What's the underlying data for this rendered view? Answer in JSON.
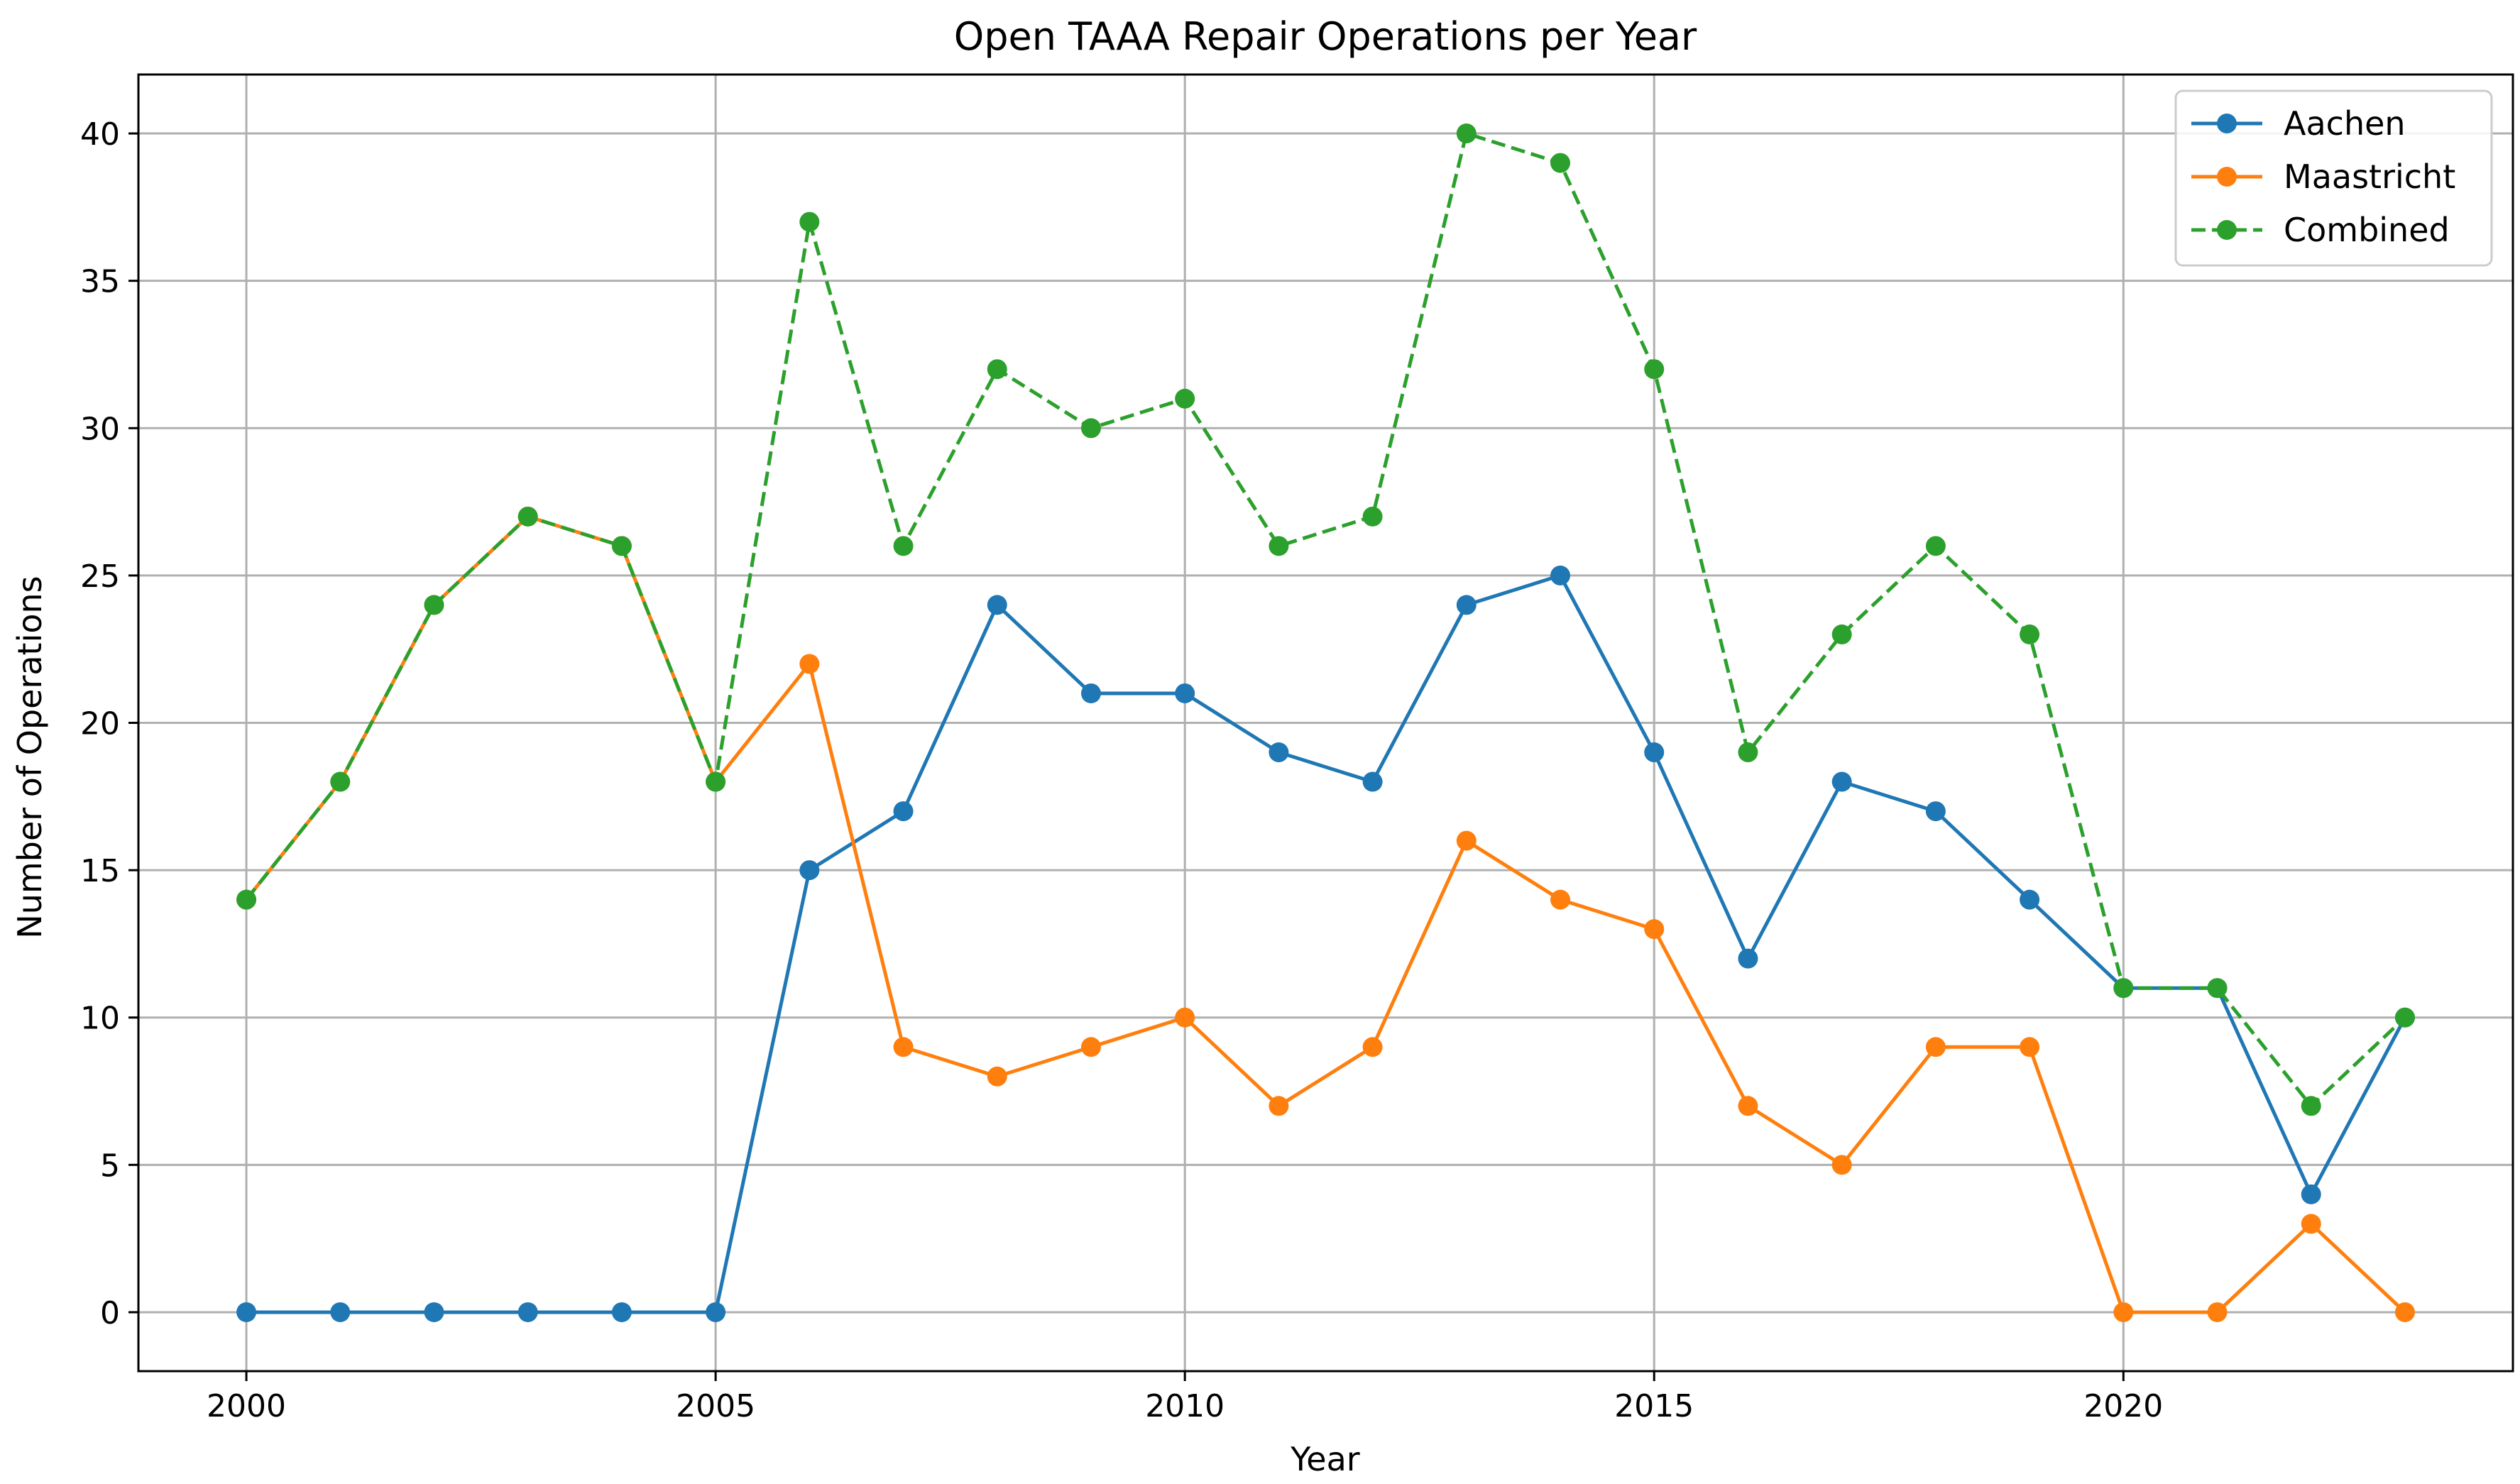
{
  "chart_data": {
    "type": "line",
    "title": "Open TAAA Repair Operations per Year",
    "xlabel": "Year",
    "ylabel": "Number of Operations",
    "x": [
      2000,
      2001,
      2002,
      2003,
      2004,
      2005,
      2006,
      2007,
      2008,
      2009,
      2010,
      2011,
      2012,
      2013,
      2014,
      2015,
      2016,
      2017,
      2018,
      2019,
      2020,
      2021,
      2022,
      2023
    ],
    "xlim": [
      1998.85,
      2024.15
    ],
    "ylim": [
      -2,
      42
    ],
    "xticks": [
      2000,
      2005,
      2010,
      2015,
      2020
    ],
    "xtick_labels": [
      "2000",
      "2005",
      "2010",
      "2015",
      "2020"
    ],
    "yticks": [
      0,
      5,
      10,
      15,
      20,
      25,
      30,
      35,
      40
    ],
    "ytick_labels": [
      "0",
      "5",
      "10",
      "15",
      "20",
      "25",
      "30",
      "35",
      "40"
    ],
    "grid": true,
    "legend_position": "top-right",
    "series": [
      {
        "name": "Aachen",
        "color": "#1f77b4",
        "linestyle": "solid",
        "marker": "circle",
        "values": [
          0,
          0,
          0,
          0,
          0,
          0,
          15,
          17,
          24,
          21,
          21,
          19,
          18,
          24,
          25,
          19,
          12,
          18,
          17,
          14,
          11,
          11,
          4,
          10
        ]
      },
      {
        "name": "Maastricht",
        "color": "#ff7f0e",
        "linestyle": "solid",
        "marker": "circle",
        "values": [
          14,
          18,
          24,
          27,
          26,
          18,
          22,
          9,
          8,
          9,
          10,
          7,
          9,
          16,
          14,
          13,
          7,
          5,
          9,
          9,
          0,
          0,
          3,
          0
        ]
      },
      {
        "name": "Combined",
        "color": "#2ca02c",
        "linestyle": "dashed",
        "marker": "circle",
        "values": [
          14,
          18,
          24,
          27,
          26,
          18,
          37,
          26,
          32,
          30,
          31,
          26,
          27,
          40,
          39,
          32,
          19,
          23,
          26,
          23,
          11,
          11,
          7,
          10
        ]
      }
    ]
  }
}
